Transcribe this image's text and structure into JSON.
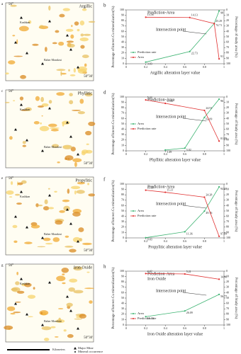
{
  "maps": [
    {
      "panel": "a",
      "name": "Argillic",
      "lon": "56°",
      "lat": "50°30'",
      "place1": "Kushkan",
      "place2": "Baher Mondzai"
    },
    {
      "panel": "c",
      "name": "Phyllitic",
      "lon": "56°",
      "lat": "50°30'",
      "place1": "Kushkan",
      "place2": "Baher Mondzai"
    },
    {
      "panel": "e",
      "name": "Propylitic",
      "lon": "56°",
      "lat": "50°30'",
      "place1": "Kushkan",
      "place2": "Baher Mondzai"
    },
    {
      "panel": "g",
      "name": "Iron Oxide",
      "lon": "56°",
      "lat": "50°30'",
      "place1": "Kushkan",
      "place2": "Baher Mondzai"
    }
  ],
  "legend": {
    "mine": "Major Mine",
    "occurrence": "Mineral occurrence",
    "scale": "Kilometers"
  },
  "chart_data": [
    {
      "type": "line",
      "panel": "b",
      "title": "Prediction-Area",
      "annotation": "Intersection point",
      "xlabel": "Argillic alteration layer value",
      "ylabel": "Percentage of known Cu mineralization(%)",
      "y2label": "Percentage of study area (%)",
      "legend": "lower left",
      "xlim": [
        0,
        1
      ],
      "xticks": [
        0,
        0.2,
        0.4,
        0.6,
        0.8,
        1
      ],
      "ylim": [
        0,
        100
      ],
      "yticks": [
        0,
        10,
        20,
        30,
        40,
        50,
        60,
        70,
        80,
        90,
        100
      ],
      "y2lim": [
        100,
        0
      ],
      "y2ticks": [
        0,
        10,
        20,
        30,
        40,
        50,
        60,
        70,
        80,
        90,
        100
      ],
      "series": [
        {
          "name": "Prediction rate",
          "color": "#3cb371",
          "axis": "y",
          "x": [
            0.2,
            0.65,
            0.9,
            0.95
          ],
          "values": [
            3.03,
            22.73,
            74.71,
            98
          ]
        },
        {
          "name": "Area",
          "color": "#e03030",
          "axis": "y2",
          "x": [
            0.2,
            0.65,
            0.9,
            0.95
          ],
          "values": [
            13.58,
            14.13,
            25.29,
            91
          ]
        }
      ]
    },
    {
      "type": "line",
      "panel": "d",
      "title": "Prediction-Area",
      "annotation": "Intersection point",
      "xlabel": "Phyllitic alteration layer value",
      "ylabel": "Percentage of known Cu mineralization(%)",
      "y2label": "Percentage of Study area (%)",
      "legend": "center left",
      "xlim": [
        0,
        1
      ],
      "xticks": [
        0,
        0.2,
        0.4,
        0.6,
        0.8,
        1
      ],
      "ylim": [
        0,
        100
      ],
      "yticks": [
        0,
        10,
        20,
        30,
        40,
        50,
        60,
        70,
        80,
        90,
        100
      ],
      "y2lim": [
        100,
        0
      ],
      "y2ticks": [
        0,
        10,
        20,
        30,
        40,
        50,
        60,
        70,
        80,
        90,
        100
      ],
      "series": [
        {
          "name": "Area",
          "color": "#3cb371",
          "axis": "y",
          "x": [
            0.4,
            0.6,
            0.8,
            0.95
          ],
          "values": [
            1.49,
            5.02,
            62.09,
            96
          ]
        },
        {
          "name": "Prediction rate",
          "color": "#e03030",
          "axis": "y2",
          "x": [
            0.2,
            0.4,
            0.8,
            0.95
          ],
          "values": [
            5.44,
            11.88,
            24.91,
            81.89
          ]
        }
      ]
    },
    {
      "type": "line",
      "panel": "f",
      "title": "Prediction-Area",
      "annotation": "Intersection point",
      "xlabel": "Propylitic alteration layer value",
      "ylabel": "Percentage of known Cu mineralization(%)",
      "y2label": "Percentage of Study area (%)",
      "legend": "center left",
      "xlim": [
        0,
        1
      ],
      "xticks": [
        0,
        0.2,
        0.4,
        0.6,
        0.8,
        1
      ],
      "ylim": [
        0,
        100
      ],
      "yticks": [
        0,
        10,
        20,
        30,
        40,
        50,
        60,
        70,
        80,
        90,
        100
      ],
      "y2lim": [
        100,
        0
      ],
      "y2ticks": [
        0,
        10,
        20,
        30,
        40,
        50,
        60,
        70,
        80,
        90,
        100
      ],
      "series": [
        {
          "name": "Area",
          "color": "#3cb371",
          "axis": "y",
          "x": [
            0.2,
            0.6,
            0.8,
            0.95
          ],
          "values": [
            0.43,
            11.36,
            49.76,
            94.69
          ]
        },
        {
          "name": "Prediction rate",
          "color": "#e03030",
          "axis": "y2",
          "x": [
            0.2,
            0.4,
            0.8,
            0.95
          ],
          "values": [
            11.38,
            15.21,
            24.28,
            97.09
          ]
        }
      ]
    },
    {
      "type": "line",
      "panel": "h",
      "title": "Prediction-Area",
      "subtitle": "Iron Oxide",
      "annotation": "Intersection point",
      "xlabel": "Iron Oxide alteration layer value",
      "ylabel": "Percentage of known Cu mineralization(%)",
      "y2label": "Percentage of Study area (%)",
      "legend": "lower left",
      "xlim": [
        0,
        1
      ],
      "xticks": [
        0,
        0.2,
        0.4,
        0.6,
        0.8,
        1
      ],
      "ylim": [
        0,
        100
      ],
      "yticks": [
        0,
        10,
        20,
        30,
        40,
        50,
        60,
        70,
        80,
        90,
        100
      ],
      "y2lim": [
        100,
        0
      ],
      "y2ticks": [
        0,
        10,
        20,
        30,
        40,
        50,
        60,
        70,
        80,
        90,
        100
      ],
      "series": [
        {
          "name": "Area",
          "color": "#3cb371",
          "axis": "y",
          "x": [
            0.2,
            0.6,
            0.95
          ],
          "values": [
            15.43,
            26.09,
            56.77
          ]
        },
        {
          "name": "Prediction rate",
          "color": "#e03030",
          "axis": "y2",
          "x": [
            0.2,
            0.6,
            0.95
          ],
          "values": [
            4.42,
            5.21,
            14.98
          ]
        }
      ]
    }
  ]
}
